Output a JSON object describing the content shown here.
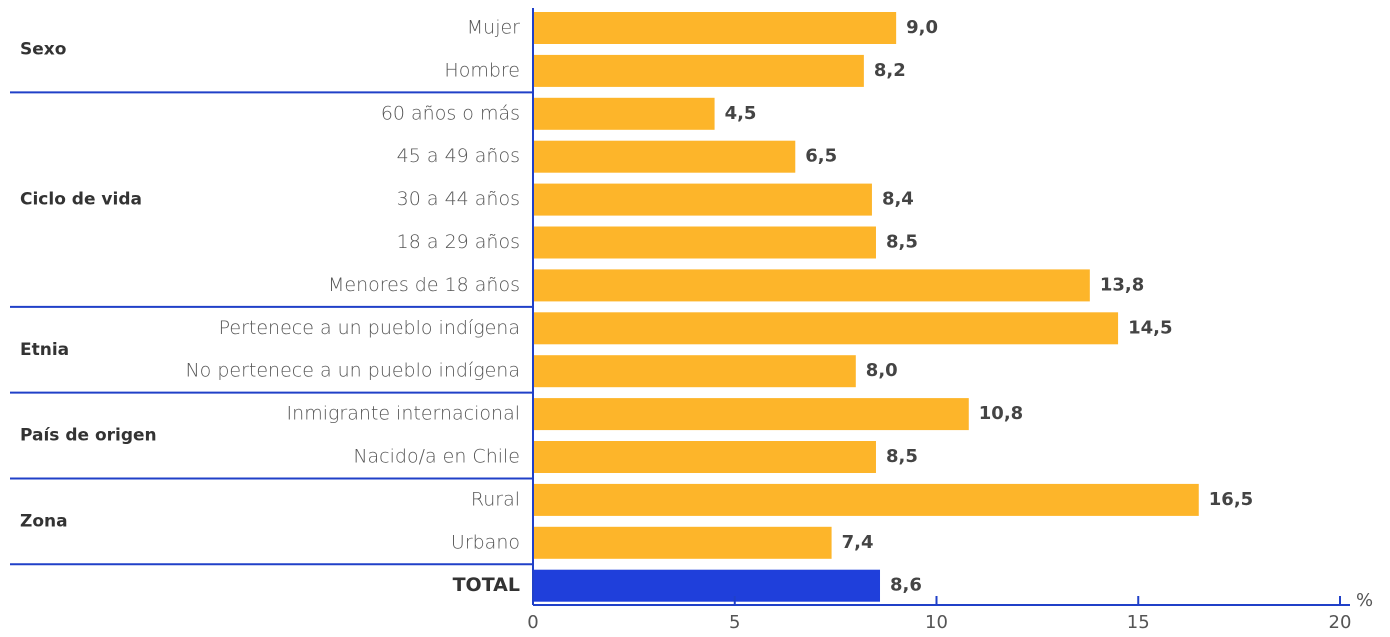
{
  "chart_data": {
    "type": "bar",
    "orientation": "horizontal",
    "groups": [
      {
        "name": "Sexo",
        "color": "#fdb52a",
        "categories": [
          "Mujer",
          "Hombre"
        ],
        "values": [
          9.0,
          8.2
        ],
        "value_labels": [
          "9,0",
          "8,2"
        ]
      },
      {
        "name": "Ciclo de vida",
        "color": "#fdb52a",
        "categories": [
          "60 años o más",
          "45 a 49 años",
          "30 a 44 años",
          "18 a 29 años",
          "Menores de 18 años"
        ],
        "values": [
          4.5,
          6.5,
          8.4,
          8.5,
          13.8
        ],
        "value_labels": [
          "4,5",
          "6,5",
          "8,4",
          "8,5",
          "13,8"
        ]
      },
      {
        "name": "Etnia",
        "color": "#fdb52a",
        "categories": [
          "Pertenece a un pueblo indígena",
          "No pertenece a un pueblo indígena"
        ],
        "values": [
          14.5,
          8.0
        ],
        "value_labels": [
          "14,5",
          "8,0"
        ]
      },
      {
        "name": "País de origen",
        "color": "#fdb52a",
        "categories": [
          "Inmigrante internacional",
          "Nacido/a en Chile"
        ],
        "values": [
          10.8,
          8.5
        ],
        "value_labels": [
          "10,8",
          "8,5"
        ]
      },
      {
        "name": "Zona",
        "color": "#fdb52a",
        "categories": [
          "Rural",
          "Urbano"
        ],
        "values": [
          16.5,
          7.4
        ],
        "value_labels": [
          "16,5",
          "7,4"
        ]
      },
      {
        "color": "#1f3fdb",
        "emphasis": true,
        "categories": [
          "TOTAL"
        ],
        "values": [
          8.6
        ],
        "value_labels": [
          "8,6"
        ]
      }
    ],
    "xlim": [
      0,
      20
    ],
    "xticks": [
      0,
      5,
      10,
      15,
      20
    ],
    "x_unit": "%",
    "grid": false
  }
}
